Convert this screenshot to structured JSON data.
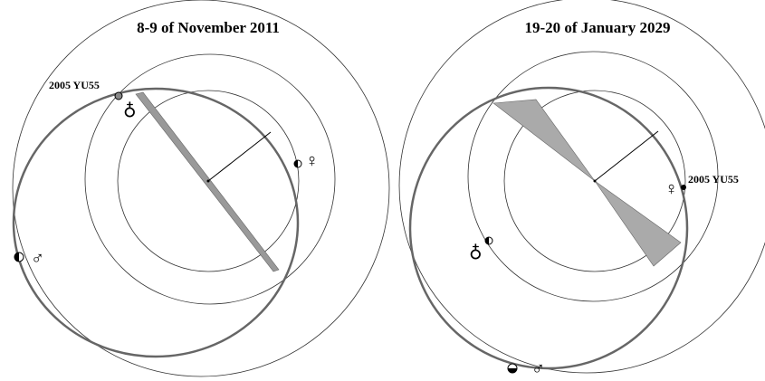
{
  "panels": [
    {
      "title": "8-9 of November 2011",
      "asteroid": "2005 YU55",
      "earth": "♁",
      "venus": "♀",
      "mars": "♂"
    },
    {
      "title": "19-20 of January 2029",
      "asteroid": "2005 YU55",
      "earth": "♁",
      "venus": "♀",
      "mars": "♂"
    }
  ]
}
